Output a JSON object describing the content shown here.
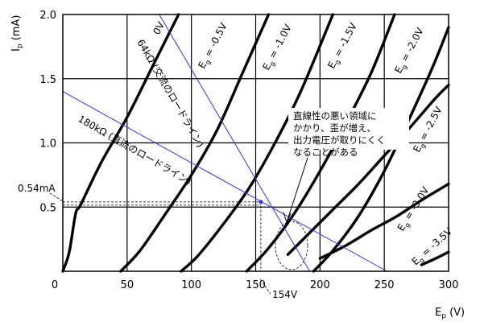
{
  "chart_data": {
    "type": "line",
    "xlabel": "Ep (V)",
    "ylabel": "Ip (mA)",
    "xlim": [
      0,
      300
    ],
    "ylim": [
      0,
      2.0
    ],
    "x_ticks": [
      {
        "value": 0,
        "label": "0"
      },
      {
        "value": 50,
        "label": "50"
      },
      {
        "value": 100,
        "label": "100"
      },
      {
        "value": 150,
        "label": "150"
      },
      {
        "value": 200,
        "label": "200"
      },
      {
        "value": 250,
        "label": "250"
      },
      {
        "value": 300,
        "label": "300"
      }
    ],
    "y_ticks": [
      {
        "value": 0.5,
        "label": "0.5"
      },
      {
        "value": 1.0,
        "label": "1.0"
      },
      {
        "value": 1.5,
        "label": "1.5"
      },
      {
        "value": 2.0,
        "label": "2.0"
      }
    ],
    "grid": true,
    "series": [
      {
        "name": "Eg = 0V",
        "label": "0V",
        "points": [
          [
            0,
            0
          ],
          [
            5,
            0.15
          ],
          [
            10,
            0.45
          ],
          [
            14,
            0.52
          ],
          [
            30,
            0.85
          ],
          [
            50,
            1.2
          ],
          [
            70,
            1.6
          ],
          [
            90,
            2.0
          ]
        ]
      },
      {
        "name": "Eg = -0.5V",
        "label": "Eg = -0.5V",
        "points": [
          [
            45,
            0
          ],
          [
            60,
            0.16
          ],
          [
            80,
            0.45
          ],
          [
            100,
            0.75
          ],
          [
            120,
            1.1
          ],
          [
            140,
            1.55
          ],
          [
            160,
            2.0
          ]
        ]
      },
      {
        "name": "Eg = -1.0V",
        "label": "Eg = -1.0V",
        "points": [
          [
            92,
            0
          ],
          [
            105,
            0.12
          ],
          [
            125,
            0.37
          ],
          [
            145,
            0.65
          ],
          [
            165,
            1.0
          ],
          [
            185,
            1.4
          ],
          [
            210,
            2.0
          ]
        ]
      },
      {
        "name": "Eg = -1.5V",
        "label": "Eg = -1.5V",
        "points": [
          [
            143,
            0
          ],
          [
            160,
            0.18
          ],
          [
            180,
            0.45
          ],
          [
            200,
            0.78
          ],
          [
            220,
            1.15
          ],
          [
            240,
            1.55
          ],
          [
            258,
            2.0
          ]
        ]
      },
      {
        "name": "Eg = -2.0V",
        "label": "Eg = -2.0V",
        "points": [
          [
            195,
            0
          ],
          [
            210,
            0.16
          ],
          [
            230,
            0.43
          ],
          [
            250,
            0.78
          ],
          [
            270,
            1.2
          ],
          [
            288,
            1.6
          ],
          [
            300,
            1.9
          ]
        ]
      },
      {
        "name": "Eg = -2.5V",
        "label": "Eg = -2.5V",
        "points": [
          [
            175,
            0.13
          ],
          [
            190,
            0.28
          ],
          [
            210,
            0.48
          ],
          [
            230,
            0.68
          ],
          [
            250,
            0.9
          ],
          [
            270,
            1.12
          ],
          [
            290,
            1.35
          ],
          [
            300,
            1.45
          ]
        ]
      },
      {
        "name": "Eg = -3.0V",
        "label": "Eg = -3.0V",
        "points": [
          [
            200,
            0.1
          ],
          [
            220,
            0.2
          ],
          [
            240,
            0.32
          ],
          [
            260,
            0.43
          ],
          [
            280,
            0.56
          ],
          [
            300,
            0.68
          ]
        ]
      },
      {
        "name": "Eg = -3.5V",
        "label": "Eg = -3.5V",
        "points": [
          [
            279,
            0.05
          ],
          [
            290,
            0.1
          ],
          [
            300,
            0.15
          ]
        ]
      }
    ],
    "load_lines": [
      {
        "name": "64kΩ (交流のロードライン)",
        "points": [
          [
            75,
            2.0
          ],
          [
            192,
            0.0
          ]
        ]
      },
      {
        "name": "180kΩ (直流のロードライン)",
        "points": [
          [
            0,
            1.4
          ],
          [
            252,
            0.0
          ]
        ]
      }
    ],
    "operating_point": {
      "x": 154,
      "y": 0.54,
      "x_label": "154V",
      "y_label": "0.54mA"
    },
    "annotation": "直線性の悪い領域にかかり、歪が増え、出力電圧が取りにくくなることがある"
  }
}
